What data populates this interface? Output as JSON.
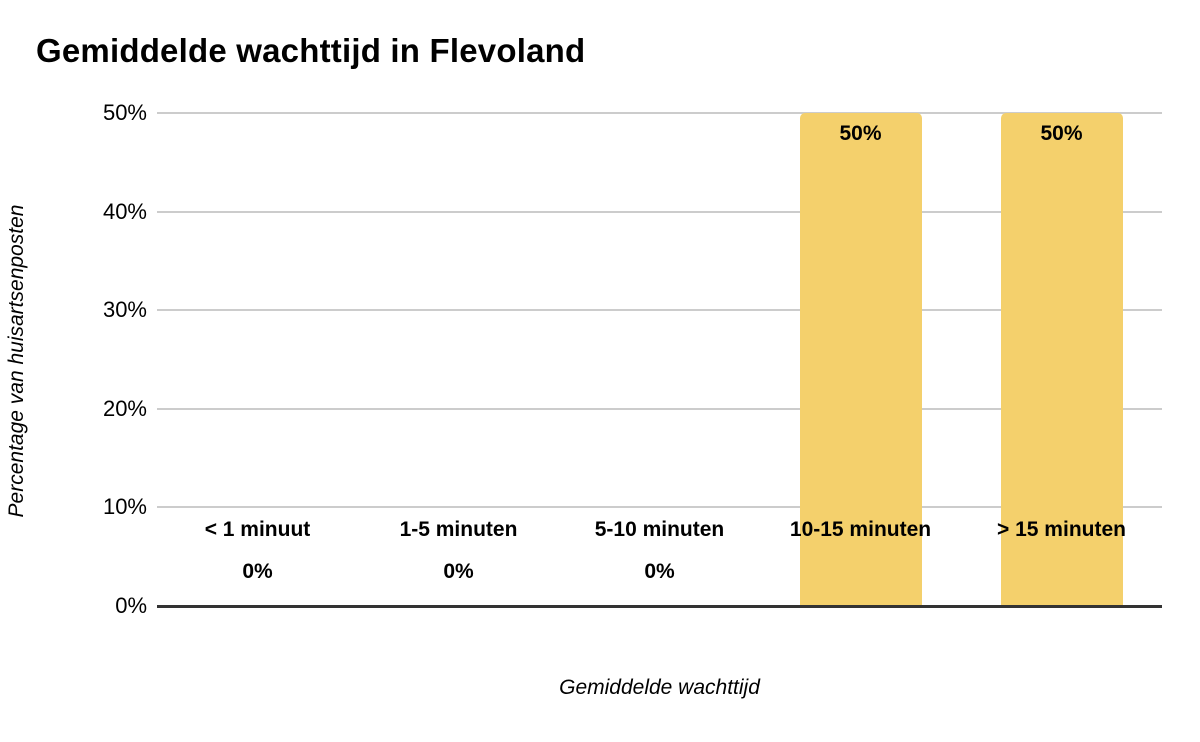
{
  "chart_data": {
    "type": "bar",
    "title": "Gemiddelde wachttijd in Flevoland",
    "categories": [
      "< 1 minuut",
      "1-5 minuten",
      "5-10 minuten",
      "10-15 minuten",
      "> 15 minuten"
    ],
    "values": [
      0,
      0,
      0,
      50,
      50
    ],
    "value_labels": [
      "0%",
      "0%",
      "0%",
      "50%",
      "50%"
    ],
    "xlabel": "Gemiddelde wachttijd",
    "ylabel": "Percentage van huisartsenposten",
    "ylim": [
      0,
      50
    ],
    "ytick_values": [
      0,
      10,
      20,
      30,
      40,
      50
    ],
    "ytick_labels": [
      "0%",
      "10%",
      "20%",
      "30%",
      "40%",
      "50%"
    ],
    "grid": true,
    "legend_position": "none",
    "colors": {
      "bar": "#F4D06C",
      "gridline": "#cccccc",
      "axis_line": "#333333",
      "text": "#000000",
      "background": "#ffffff"
    }
  }
}
